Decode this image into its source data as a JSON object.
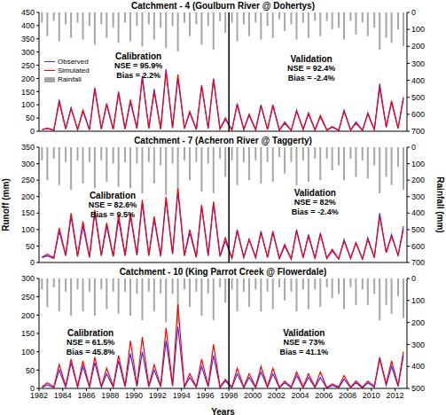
{
  "chart_data": [
    {
      "type": "line",
      "title": "Catchment - 4 (Goulburn River @ Dohertys)",
      "legend": "upper left",
      "x": [
        1982.25,
        1982.7,
        1983.25,
        1983.7,
        1984.25,
        1984.7,
        1985.25,
        1985.7,
        1986.25,
        1986.7,
        1987.25,
        1987.7,
        1988.25,
        1988.7,
        1989.25,
        1989.7,
        1990.25,
        1990.7,
        1991.25,
        1991.7,
        1992.25,
        1992.7,
        1993.25,
        1993.7,
        1994.25,
        1994.7,
        1995.25,
        1995.7,
        1996.25,
        1996.7,
        1997.25,
        1997.7,
        1998.25,
        1998.7,
        1999.25,
        1999.7,
        2000.25,
        2000.7,
        2001.25,
        2001.7,
        2002.25,
        2002.7,
        2003.25,
        2003.7,
        2004.25,
        2004.7,
        2005.25,
        2005.7,
        2006.25,
        2006.7,
        2007.25,
        2007.7,
        2008.25,
        2008.7,
        2009.25,
        2009.7,
        2010.25,
        2010.7,
        2011.25,
        2011.7,
        2012.25,
        2012.7
      ],
      "series": [
        {
          "name": "Observed",
          "color": "#3333ff",
          "values": [
            5,
            10,
            3,
            120,
            8,
            90,
            6,
            75,
            5,
            165,
            8,
            100,
            7,
            150,
            8,
            110,
            10,
            210,
            10,
            160,
            8,
            235,
            12,
            200,
            10,
            70,
            6,
            175,
            10,
            200,
            8,
            45,
            4,
            105,
            6,
            60,
            5,
            100,
            6,
            95,
            4,
            30,
            3,
            80,
            6,
            65,
            4,
            55,
            4,
            15,
            3,
            80,
            4,
            30,
            3,
            70,
            5,
            180,
            15,
            110,
            10,
            130
          ]
        },
        {
          "name": "Simulated",
          "color": "#ff0000",
          "values": [
            6,
            12,
            4,
            110,
            9,
            85,
            7,
            80,
            6,
            160,
            9,
            105,
            8,
            145,
            9,
            120,
            11,
            200,
            11,
            150,
            9,
            225,
            13,
            215,
            11,
            75,
            7,
            170,
            11,
            195,
            9,
            50,
            5,
            100,
            7,
            65,
            6,
            95,
            7,
            100,
            5,
            35,
            4,
            75,
            7,
            70,
            5,
            60,
            5,
            18,
            4,
            75,
            5,
            35,
            4,
            65,
            6,
            165,
            16,
            115,
            11,
            125
          ]
        },
        {
          "name": "Rainfall",
          "type": "bar",
          "axis": "y2",
          "color": "#a6a6a6",
          "values": [
            60,
            140,
            50,
            170,
            70,
            150,
            60,
            160,
            80,
            190,
            70,
            150,
            90,
            180,
            60,
            170,
            80,
            200,
            70,
            160,
            90,
            210,
            80,
            230,
            60,
            140,
            70,
            190,
            80,
            220,
            50,
            120,
            60,
            170,
            70,
            140,
            60,
            160,
            80,
            150,
            40,
            110,
            70,
            160,
            60,
            150,
            50,
            140,
            50,
            100,
            90,
            160,
            50,
            130,
            60,
            140,
            90,
            220,
            150,
            180,
            100,
            200
          ]
        }
      ],
      "xlim": [
        1982,
        2013
      ],
      "ylim": [
        0,
        450
      ],
      "yticks": [
        0,
        50,
        100,
        150,
        200,
        250,
        300,
        350,
        400,
        450
      ],
      "y2lim": [
        0,
        700
      ],
      "y2ticks": [
        0,
        100,
        200,
        300,
        400,
        500,
        600,
        700
      ],
      "vline": 1998,
      "annotations": [
        [
          "Calibration",
          "NSE = 95.9%",
          "Bias = 2.2%"
        ],
        [
          "Validation",
          "NSE = 92.4%",
          "Bias = -2.4%"
        ]
      ]
    },
    {
      "type": "line",
      "title": "Catchment - 7 (Acheron River @ Taggerty)",
      "y_label": "Runoff (mm)",
      "y2_label": "Rainfall (mm)",
      "x": [
        1982.25,
        1982.7,
        1983.25,
        1983.7,
        1984.25,
        1984.7,
        1985.25,
        1985.7,
        1986.25,
        1986.7,
        1987.25,
        1987.7,
        1988.25,
        1988.7,
        1989.25,
        1989.7,
        1990.25,
        1990.7,
        1991.25,
        1991.7,
        1992.25,
        1992.7,
        1993.25,
        1993.7,
        1994.25,
        1994.7,
        1995.25,
        1995.7,
        1996.25,
        1996.7,
        1997.25,
        1997.7,
        1998.25,
        1998.7,
        1999.25,
        1999.7,
        2000.25,
        2000.7,
        2001.25,
        2001.7,
        2002.25,
        2002.7,
        2003.25,
        2003.7,
        2004.25,
        2004.7,
        2005.25,
        2005.7,
        2006.25,
        2006.7,
        2007.25,
        2007.7,
        2008.25,
        2008.7,
        2009.25,
        2009.7,
        2010.25,
        2010.7,
        2011.25,
        2011.7,
        2012.25,
        2012.7
      ],
      "series": [
        {
          "name": "Observed",
          "color": "#3333ff",
          "values": [
            15,
            20,
            12,
            95,
            20,
            140,
            18,
            110,
            15,
            150,
            20,
            110,
            18,
            130,
            20,
            140,
            22,
            180,
            20,
            130,
            18,
            190,
            25,
            215,
            20,
            90,
            15,
            170,
            20,
            180,
            18,
            65,
            12,
            100,
            15,
            70,
            14,
            95,
            15,
            90,
            12,
            50,
            10,
            100,
            14,
            85,
            12,
            90,
            12,
            35,
            10,
            70,
            12,
            60,
            10,
            75,
            14,
            150,
            30,
            85,
            20,
            110
          ]
        },
        {
          "name": "Simulated",
          "color": "#ff0000",
          "values": [
            16,
            25,
            14,
            105,
            22,
            150,
            20,
            125,
            17,
            160,
            22,
            120,
            20,
            145,
            22,
            150,
            24,
            190,
            22,
            140,
            20,
            200,
            27,
            225,
            22,
            100,
            17,
            175,
            22,
            185,
            20,
            75,
            13,
            95,
            16,
            70,
            15,
            90,
            16,
            95,
            13,
            55,
            11,
            95,
            15,
            80,
            13,
            85,
            13,
            40,
            11,
            65,
            13,
            60,
            11,
            70,
            15,
            140,
            30,
            80,
            22,
            100
          ]
        },
        {
          "name": "Rainfall",
          "type": "bar",
          "axis": "y2",
          "color": "#a6a6a6",
          "values": [
            80,
            200,
            70,
            230,
            90,
            260,
            80,
            220,
            90,
            250,
            80,
            210,
            100,
            240,
            90,
            250,
            100,
            280,
            90,
            220,
            110,
            290,
            100,
            300,
            80,
            200,
            90,
            270,
            100,
            280,
            70,
            180,
            80,
            230,
            90,
            200,
            80,
            220,
            90,
            210,
            60,
            160,
            90,
            230,
            80,
            210,
            70,
            200,
            70,
            140,
            110,
            200,
            70,
            180,
            80,
            190,
            110,
            280,
            180,
            230,
            120,
            260
          ]
        }
      ],
      "xlim": [
        1982,
        2013
      ],
      "ylim": [
        0,
        350
      ],
      "yticks": [
        0,
        50,
        100,
        150,
        200,
        250,
        300,
        350
      ],
      "y2lim": [
        0,
        700
      ],
      "y2ticks": [
        0,
        100,
        200,
        300,
        400,
        500,
        600,
        700
      ],
      "vline": 1998,
      "annotations": [
        [
          "Calibration",
          "NSE = 82.6%",
          "Bias = 9.5%"
        ],
        [
          "Validation",
          "NSE = 82%",
          "Bias = -2.4%"
        ]
      ]
    },
    {
      "type": "line",
      "title": "Catchment - 10 (King Parrot Creek @ Flowerdale)",
      "x_label": "Years",
      "x": [
        1982.25,
        1982.7,
        1983.25,
        1983.7,
        1984.25,
        1984.7,
        1985.25,
        1985.7,
        1986.25,
        1986.7,
        1987.25,
        1987.7,
        1988.25,
        1988.7,
        1989.25,
        1989.7,
        1990.25,
        1990.7,
        1991.25,
        1991.7,
        1992.25,
        1992.7,
        1993.25,
        1993.7,
        1994.25,
        1994.7,
        1995.25,
        1995.7,
        1996.25,
        1996.7,
        1997.25,
        1997.7,
        1998.25,
        1998.7,
        1999.25,
        1999.7,
        2000.25,
        2000.7,
        2001.25,
        2001.7,
        2002.25,
        2002.7,
        2003.25,
        2003.7,
        2004.25,
        2004.7,
        2005.25,
        2005.7,
        2006.25,
        2006.7,
        2007.25,
        2007.7,
        2008.25,
        2008.7,
        2009.25,
        2009.7,
        2010.25,
        2010.7,
        2011.25,
        2011.7,
        2012.25,
        2012.7
      ],
      "series": [
        {
          "name": "Observed",
          "color": "#3333ff",
          "values": [
            2,
            10,
            2,
            50,
            3,
            70,
            3,
            60,
            3,
            70,
            3,
            40,
            3,
            75,
            4,
            95,
            5,
            100,
            4,
            50,
            4,
            130,
            6,
            170,
            3,
            30,
            3,
            60,
            4,
            90,
            2,
            20,
            2,
            40,
            2,
            30,
            2,
            45,
            3,
            40,
            2,
            15,
            2,
            35,
            2,
            30,
            2,
            30,
            1,
            8,
            2,
            25,
            2,
            15,
            1,
            15,
            3,
            80,
            8,
            60,
            5,
            90
          ]
        },
        {
          "name": "Simulated",
          "color": "#ff0000",
          "values": [
            4,
            15,
            4,
            65,
            6,
            80,
            5,
            75,
            5,
            85,
            5,
            55,
            6,
            90,
            7,
            130,
            8,
            140,
            7,
            65,
            7,
            165,
            9,
            230,
            5,
            40,
            5,
            80,
            7,
            120,
            4,
            25,
            4,
            55,
            4,
            40,
            4,
            60,
            5,
            55,
            3,
            20,
            4,
            45,
            4,
            40,
            4,
            45,
            2,
            12,
            4,
            35,
            3,
            20,
            3,
            20,
            6,
            85,
            12,
            75,
            8,
            100
          ]
        },
        {
          "name": "Rainfall",
          "type": "bar",
          "axis": "y2",
          "color": "#a6a6a6",
          "values": [
            50,
            130,
            40,
            150,
            60,
            170,
            50,
            150,
            60,
            170,
            50,
            140,
            60,
            160,
            60,
            170,
            70,
            190,
            60,
            150,
            70,
            200,
            70,
            210,
            50,
            130,
            60,
            170,
            70,
            190,
            40,
            110,
            50,
            150,
            60,
            130,
            50,
            150,
            60,
            140,
            40,
            100,
            60,
            150,
            50,
            140,
            50,
            130,
            40,
            90,
            70,
            140,
            40,
            120,
            50,
            120,
            70,
            190,
            120,
            160,
            80,
            180
          ]
        }
      ],
      "xlim": [
        1982,
        2013
      ],
      "xticks": [
        1982,
        1984,
        1986,
        1988,
        1990,
        1992,
        1994,
        1996,
        1998,
        2000,
        2002,
        2004,
        2006,
        2008,
        2010,
        2012
      ],
      "ylim": [
        0,
        300
      ],
      "yticks": [
        0,
        50,
        100,
        150,
        200,
        250,
        300
      ],
      "y2lim": [
        0,
        500
      ],
      "y2ticks": [
        0,
        100,
        200,
        300,
        400,
        500
      ],
      "vline": 1998,
      "annotations": [
        [
          "Calibration",
          "NSE = 61.5%",
          "Bias = 45.8%"
        ],
        [
          "Validation",
          "NSE = 73%",
          "Bias = 41.1%"
        ]
      ]
    }
  ]
}
